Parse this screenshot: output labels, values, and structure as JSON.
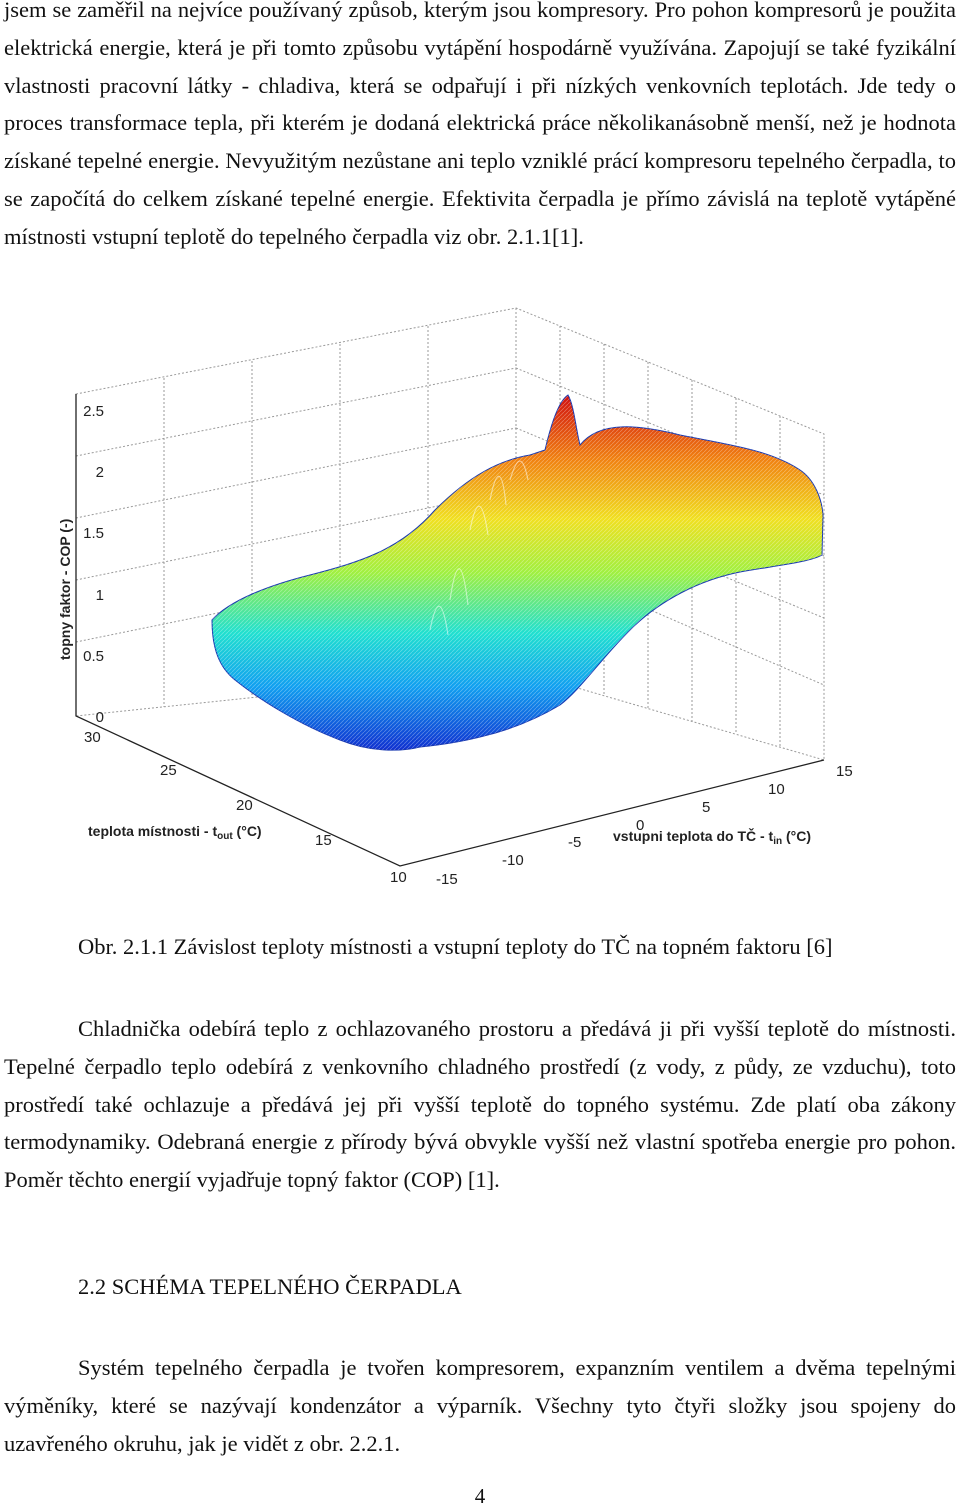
{
  "paragraphs": {
    "p1": "jsem se zaměřil na nejvíce používaný způsob, kterým jsou kompresory. Pro pohon kompresorů je použita elektrická energie, která je při tomto způsobu vytápění hospodárně využívána. Zapojují se také fyzikální vlastnosti pracovní látky - chladiva, která se odpařují i při nízkých venkovních teplotách. Jde tedy o proces transformace tepla, při kterém je dodaná elektrická práce několikanásobně menší, než je hodnota získané tepelné energie. Nevyužitým nezůstane ani teplo vzniklé prácí kompresoru tepelného čerpadla, to se započítá do celkem získané tepelné energie. Efektivita čerpadla je přímo závislá na teplotě vytápěné místnosti vstupní teplotě do tepelného čerpadla viz obr. 2.1.1[1].",
    "p2": "Chladnička odebírá teplo z ochlazovaného prostoru a předává ji při vyšší teplotě do místnosti. Tepelné čerpadlo teplo odebírá z venkovního chladného prostředí (z vody, z půdy, ze vzduchu), toto prostředí také ochlazuje a předává jej při vyšší teplotě do topného systému. Zde platí oba zákony termodynamiky. Odebraná energie z přírody bývá obvykle vyšší než vlastní spotřeba energie pro pohon. Poměr těchto energií vyjadřuje topný faktor (COP) [1].",
    "p3": "Systém tepelného čerpadla je tvořen kompresorem, expanzním ventilem a dvěma tepelnými výměníky, které se nazývají kondenzátor a výparník. Všechny tyto čtyři složky jsou spojeny do uzavřeného okruhu, jak je vidět z obr. 2.2.1."
  },
  "caption": "Obr. 2.1.1 Závislost teploty místnosti a vstupní teploty do TČ na topném faktoru [6]",
  "heading": "2.2 SCHÉMA TEPELNÉHO ČERPADLA",
  "page_number": "4",
  "chart_data": {
    "type": "surface3d",
    "z_label": "topny faktor - COP (-)",
    "y_label_prefix": "teplota místnosti - t",
    "y_label_sub": "out",
    "y_label_suffix": " (°C)",
    "x_label_prefix": "vstupni teplota do TČ - t",
    "x_label_sub": "in",
    "x_label_suffix": " (°C)",
    "z_ticks": [
      "0",
      "0.5",
      "1",
      "1.5",
      "2",
      "2.5"
    ],
    "y_ticks": [
      "10",
      "15",
      "20",
      "25",
      "30"
    ],
    "x_ticks": [
      "-15",
      "-10",
      "-5",
      "0",
      "5",
      "10",
      "15"
    ],
    "x_range": [
      -15,
      15
    ],
    "y_range": [
      10,
      30
    ],
    "z_range": [
      0,
      2.5
    ],
    "colormap": [
      "#1030d0",
      "#10a0f0",
      "#20e0d0",
      "#a0f040",
      "#f0e020",
      "#f08010",
      "#d01010"
    ]
  }
}
